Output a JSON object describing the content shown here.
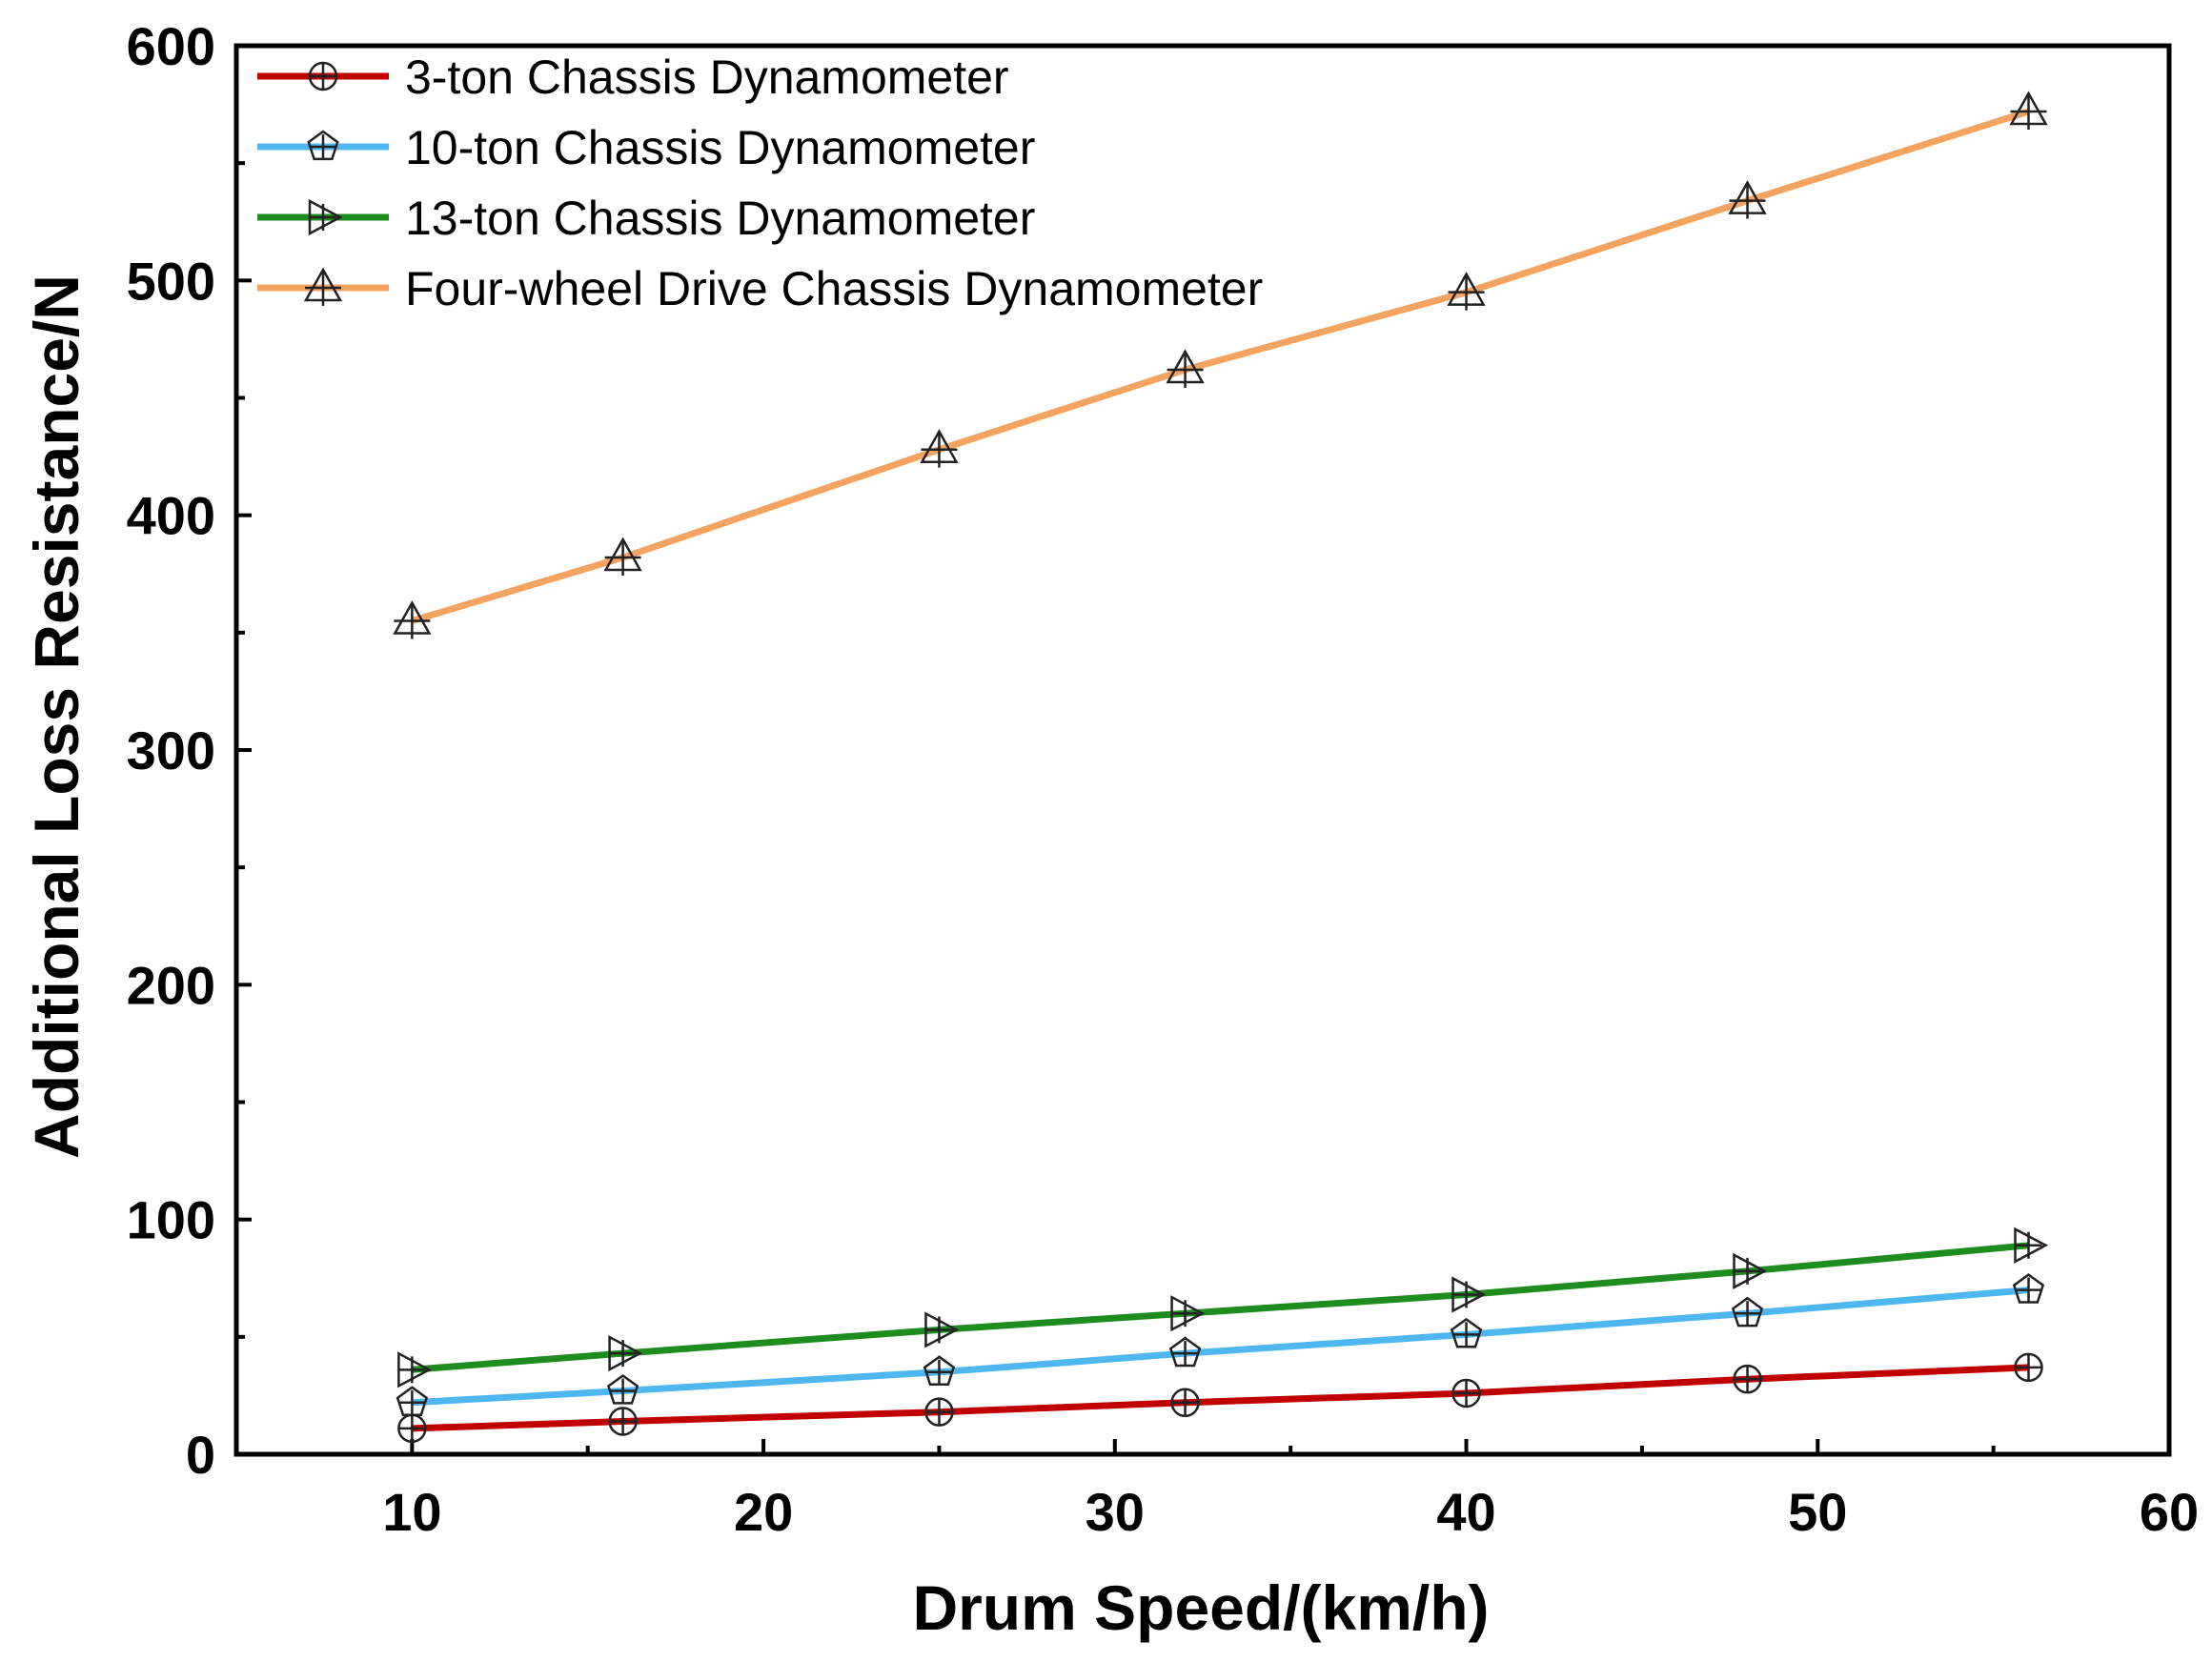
{
  "chart_data": {
    "type": "line",
    "title": "",
    "xlabel": "Drum Speed/(km/h)",
    "ylabel": "Additional Loss Resistance/N",
    "xlim": [
      5,
      60
    ],
    "ylim": [
      0,
      600
    ],
    "xticks": [
      10,
      20,
      30,
      40,
      50,
      60
    ],
    "yticks": [
      0,
      100,
      200,
      300,
      400,
      500,
      600
    ],
    "x": [
      10,
      16,
      25,
      32,
      40,
      48,
      56
    ],
    "legend_position": "top-left",
    "grid": false,
    "series": [
      {
        "name": "3-ton Chassis Dynamometer",
        "color": "#c00000",
        "marker": "circle-plus",
        "values": [
          11,
          14,
          18,
          22,
          26,
          32,
          37
        ]
      },
      {
        "name": "10-ton Chassis Dynamometer",
        "color": "#4fb7f0",
        "marker": "pentagon-plus",
        "values": [
          22,
          27,
          35,
          43,
          51,
          60,
          70
        ]
      },
      {
        "name": "13-ton Chassis Dynamometer",
        "color": "#1f8c1f",
        "marker": "triangle-right-plus",
        "values": [
          36,
          43,
          53,
          60,
          68,
          78,
          89
        ]
      },
      {
        "name": "Four-wheel Drive Chassis Dynamometer",
        "color": "#f4a460",
        "marker": "triangle-up-plus",
        "values": [
          355,
          382,
          428,
          462,
          495,
          534,
          572
        ]
      }
    ]
  }
}
